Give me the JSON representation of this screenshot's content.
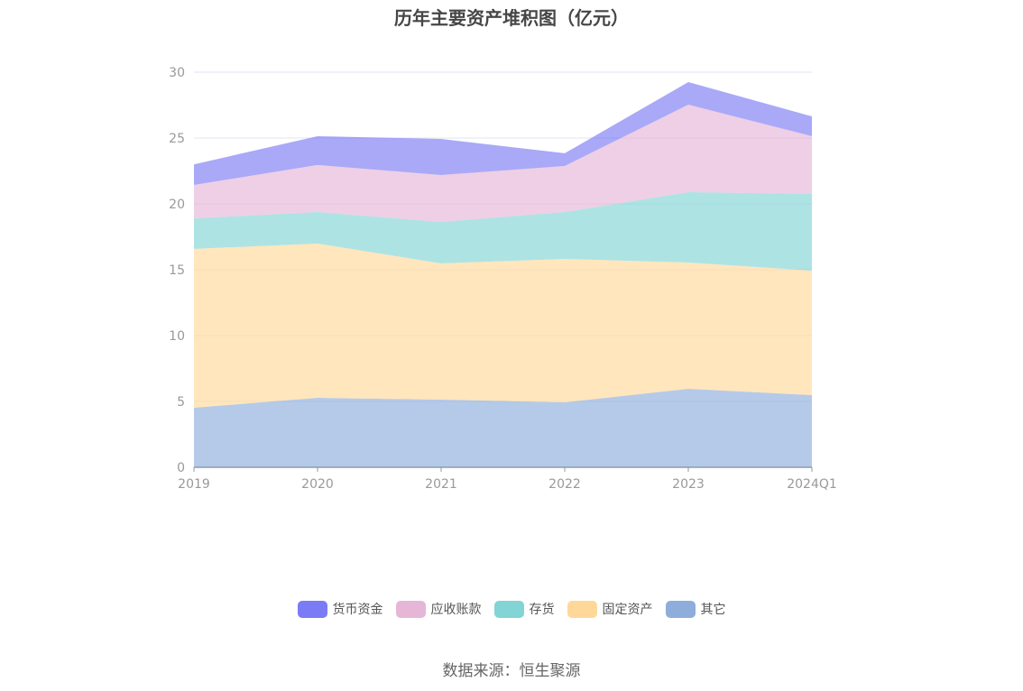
{
  "chart_data": {
    "type": "area",
    "stacked": true,
    "title": "历年主要资产堆积图（亿元）",
    "categories": [
      "2019",
      "2020",
      "2021",
      "2022",
      "2023",
      "2024Q1"
    ],
    "ylim": [
      0,
      30
    ],
    "yticks": [
      "0",
      "5",
      "10",
      "15",
      "20",
      "25",
      "30"
    ],
    "grid": true,
    "legend_position": "bottom",
    "series": [
      {
        "name": "其它",
        "color": "#8eaddb",
        "values": [
          4.52,
          5.27,
          5.14,
          4.93,
          5.96,
          5.48
        ]
      },
      {
        "name": "固定资产",
        "color": "#ffd899",
        "values": [
          12.06,
          11.72,
          10.34,
          10.89,
          9.59,
          9.45
        ]
      },
      {
        "name": "存货",
        "color": "#82d4d5",
        "values": [
          2.32,
          2.39,
          3.15,
          3.56,
          5.34,
          5.82
        ]
      },
      {
        "name": "应收账款",
        "color": "#e6b6d7",
        "values": [
          2.54,
          3.57,
          3.56,
          3.5,
          6.64,
          4.39
        ]
      },
      {
        "name": "货币资金",
        "color": "#7b7bf5",
        "values": [
          1.56,
          2.19,
          2.74,
          0.96,
          1.72,
          1.5
        ]
      }
    ],
    "legend_order": [
      "货币资金",
      "应收账款",
      "存货",
      "固定资产",
      "其它"
    ]
  },
  "source": "数据来源：恒生聚源"
}
